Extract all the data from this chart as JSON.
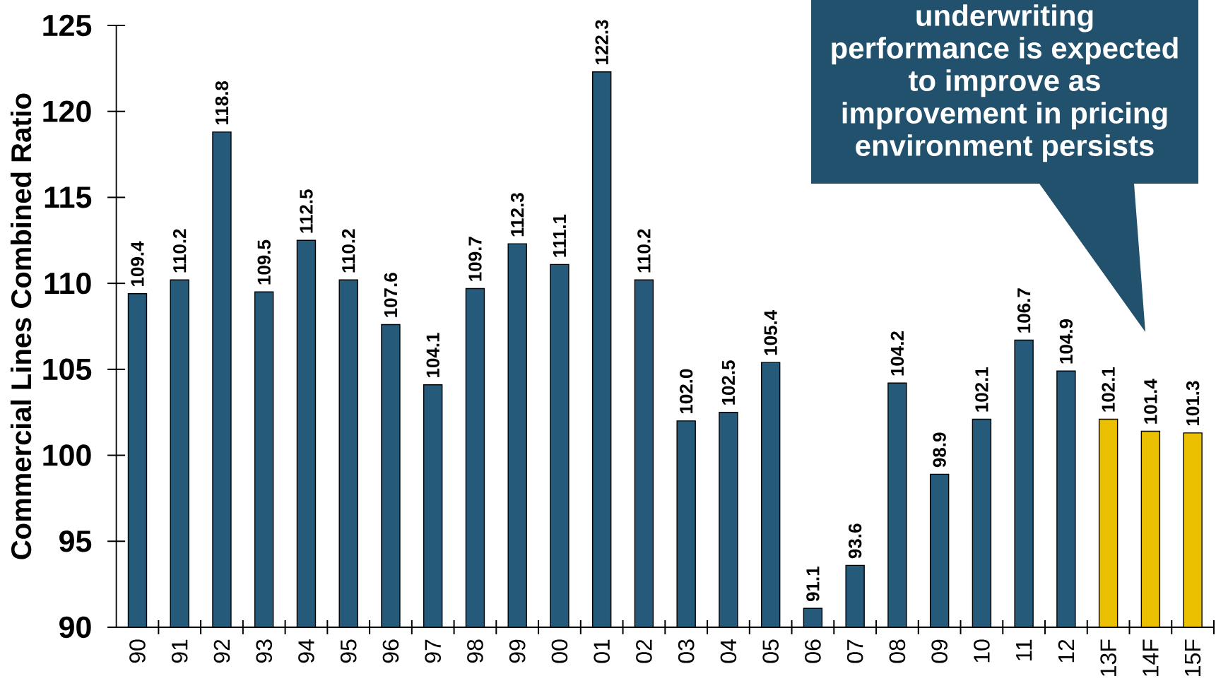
{
  "chart_data": {
    "type": "bar",
    "ylabel": "Commercial Lines Combined Ratio",
    "annotations": [
      "underwriting performance is expected to improve as improvement in pricing environment persists"
    ],
    "categories": [
      "90",
      "91",
      "92",
      "93",
      "94",
      "95",
      "96",
      "97",
      "98",
      "99",
      "00",
      "01",
      "02",
      "03",
      "04",
      "05",
      "06",
      "07",
      "08",
      "09",
      "10",
      "11",
      "12",
      "13F",
      "14F",
      "15F"
    ],
    "values": [
      109.4,
      110.2,
      118.8,
      109.5,
      112.5,
      110.2,
      107.6,
      104.1,
      109.7,
      112.3,
      111.1,
      122.3,
      110.2,
      102.0,
      102.5,
      105.4,
      91.1,
      93.6,
      104.2,
      98.9,
      102.1,
      106.7,
      104.9,
      102.1,
      101.4,
      101.3
    ],
    "value_labels": [
      "109.4",
      "110.2",
      "118.8",
      "109.5",
      "112.5",
      "110.2",
      "107.6",
      "104.1",
      "109.7",
      "112.3",
      "111.1",
      "122.3",
      "110.2",
      "102.0",
      "102.5",
      "105.4",
      "91.1",
      "93.6",
      "104.2",
      "98.9",
      "102.1",
      "106.7",
      "104.9",
      "102.1",
      "101.4",
      "101.3"
    ],
    "colors": [
      "#255a7b",
      "#255a7b",
      "#255a7b",
      "#255a7b",
      "#255a7b",
      "#255a7b",
      "#255a7b",
      "#255a7b",
      "#255a7b",
      "#255a7b",
      "#255a7b",
      "#255a7b",
      "#255a7b",
      "#255a7b",
      "#255a7b",
      "#255a7b",
      "#255a7b",
      "#255a7b",
      "#255a7b",
      "#255a7b",
      "#255a7b",
      "#255a7b",
      "#255a7b",
      "#ebc000",
      "#ebc000",
      "#ebc000"
    ],
    "ylim": [
      90,
      125
    ],
    "yticks": [
      90,
      95,
      100,
      105,
      110,
      115,
      120,
      125
    ]
  }
}
